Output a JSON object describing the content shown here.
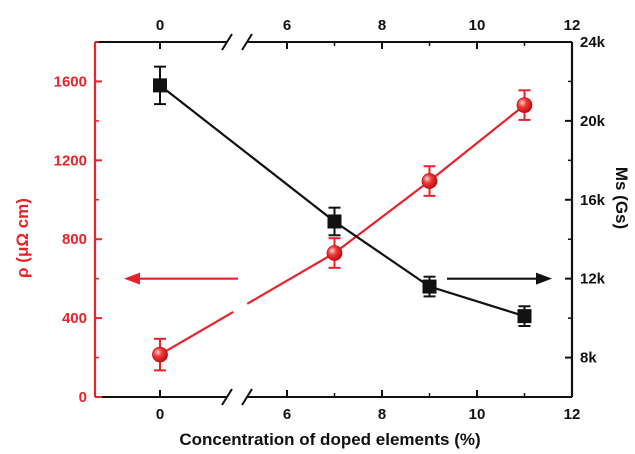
{
  "chart_data": {
    "type": "line",
    "xlabel": "Concentration of doped elements (%)",
    "ylabel_left": "ρ (μΩ cm)",
    "ylabel_right": "Ms (Gs)",
    "x_tick_labels": [
      "0",
      "6",
      "8",
      "10",
      "12"
    ],
    "x_tick_values": [
      0,
      6,
      8,
      10,
      12
    ],
    "x_axis_break": [
      0,
      5
    ],
    "y_left_ticks": [
      "0",
      "400",
      "800",
      "1200",
      "1600"
    ],
    "y_left_tick_values": [
      0,
      400,
      800,
      1200,
      1600
    ],
    "ylim_left": [
      0,
      1800
    ],
    "y_right_ticks": [
      "8k",
      "12k",
      "16k",
      "20k",
      "24k"
    ],
    "y_right_tick_values": [
      8000,
      12000,
      16000,
      20000,
      24000
    ],
    "ylim_right": [
      6000,
      24000
    ],
    "grid": false,
    "series": [
      {
        "axis": "left",
        "color": "#e8222a",
        "marker": "sphere",
        "x": [
          0,
          7,
          9,
          11
        ],
        "values": [
          215,
          730,
          1095,
          1480
        ],
        "errors": [
          80,
          75,
          75,
          75
        ]
      },
      {
        "axis": "right",
        "color": "#111111",
        "marker": "square",
        "x": [
          0,
          7,
          9,
          11
        ],
        "values": [
          21800,
          14900,
          11600,
          10100
        ],
        "errors": [
          950,
          700,
          500,
          500
        ]
      }
    ],
    "colors": {
      "left_axis": "#e8222a",
      "right_axis": "#111111"
    }
  }
}
